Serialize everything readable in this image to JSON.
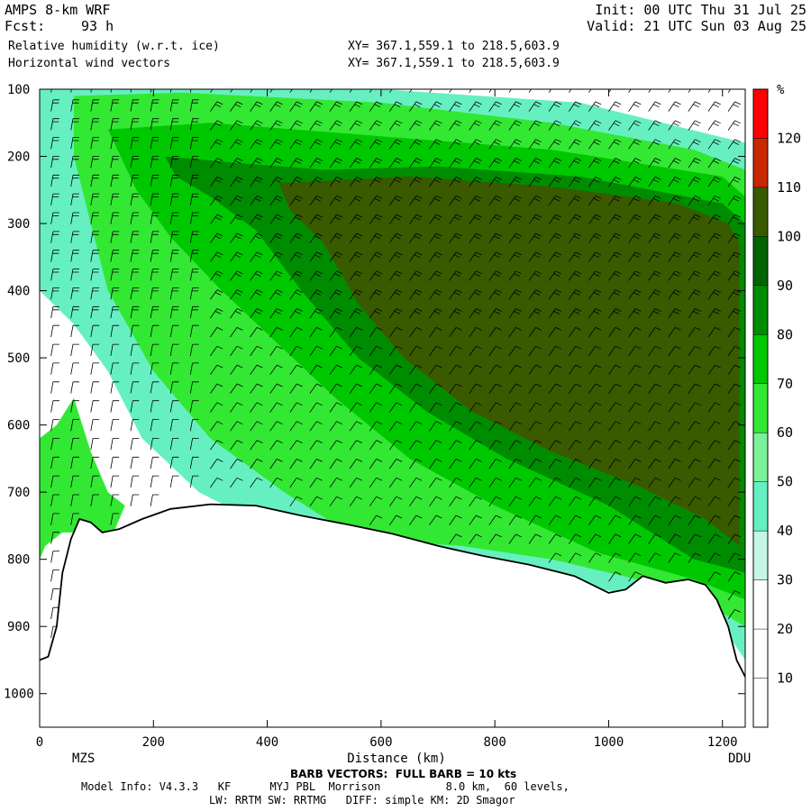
{
  "header": {
    "model": "AMPS 8-km WRF",
    "fcst_label": "Fcst:",
    "fcst_value": "93 h",
    "field1": "Relative humidity (w.r.t. ice)",
    "field2": "Horizontal wind vectors",
    "xy1": "XY= 367.1,559.1 to 218.5,603.9",
    "xy2": "XY= 367.1,559.1 to 218.5,603.9",
    "init": "Init: 00 UTC Thu 31 Jul 25",
    "valid": "Valid: 21 UTC Sun 03 Aug 25"
  },
  "footer": {
    "barb_note": "BARB VECTORS:  FULL BARB = 10 kts",
    "model_info": "Model Info: V4.3.3   KF      MYJ PBL  Morrison          8.0 km,  60 levels,",
    "physics": "LW: RRTM SW: RRTMG   DIFF: simple KM: 2D Smagor"
  },
  "chart_data": {
    "type": "heatmap",
    "title": "Relative humidity (w.r.t. ice)",
    "xlabel": "Distance (km)",
    "ylabel": "",
    "xlim": [
      0,
      1240
    ],
    "ylim": [
      1050,
      100
    ],
    "x_ticks": [
      0,
      200,
      400,
      600,
      800,
      1000,
      1200
    ],
    "y_ticks": [
      100,
      200,
      300,
      400,
      500,
      600,
      700,
      800,
      900,
      1000
    ],
    "endpoints": {
      "left": "MZS",
      "right": "DDU"
    },
    "colorbar": {
      "unit": "%",
      "levels": [
        10,
        20,
        30,
        40,
        50,
        60,
        70,
        80,
        90,
        100,
        110,
        120
      ],
      "colors": [
        "#ffffff",
        "#ffffff",
        "#ffffff",
        "#c6f7e6",
        "#66f0c2",
        "#7df09a",
        "#33e833",
        "#00c800",
        "#008c00",
        "#006400",
        "#3a5a00",
        "#c82800",
        "#ff0000"
      ]
    },
    "terrain_pressure": [
      [
        0,
        950
      ],
      [
        15,
        945
      ],
      [
        30,
        900
      ],
      [
        40,
        820
      ],
      [
        55,
        770
      ],
      [
        70,
        740
      ],
      [
        90,
        745
      ],
      [
        110,
        760
      ],
      [
        140,
        755
      ],
      [
        180,
        740
      ],
      [
        230,
        725
      ],
      [
        300,
        718
      ],
      [
        380,
        720
      ],
      [
        460,
        735
      ],
      [
        540,
        748
      ],
      [
        620,
        762
      ],
      [
        700,
        780
      ],
      [
        780,
        795
      ],
      [
        860,
        808
      ],
      [
        940,
        825
      ],
      [
        1000,
        850
      ],
      [
        1030,
        845
      ],
      [
        1060,
        825
      ],
      [
        1100,
        835
      ],
      [
        1140,
        830
      ],
      [
        1170,
        838
      ],
      [
        1190,
        860
      ],
      [
        1210,
        900
      ],
      [
        1225,
        950
      ],
      [
        1240,
        975
      ]
    ],
    "rh_regions": [
      {
        "level": ">=100",
        "polygon": [
          [
            420,
            240
          ],
          [
            650,
            230
          ],
          [
            900,
            245
          ],
          [
            1120,
            270
          ],
          [
            1210,
            300
          ],
          [
            1230,
            330
          ],
          [
            1230,
            780
          ],
          [
            1170,
            740
          ],
          [
            1050,
            690
          ],
          [
            900,
            640
          ],
          [
            760,
            580
          ],
          [
            640,
            500
          ],
          [
            560,
            420
          ],
          [
            500,
            330
          ],
          [
            440,
            280
          ]
        ]
      },
      {
        "level": "90-100",
        "polygon": [
          [
            220,
            200
          ],
          [
            350,
            210
          ],
          [
            500,
            220
          ],
          [
            700,
            215
          ],
          [
            950,
            230
          ],
          [
            1200,
            270
          ],
          [
            1240,
            300
          ],
          [
            1240,
            820
          ],
          [
            1150,
            800
          ],
          [
            1000,
            720
          ],
          [
            820,
            650
          ],
          [
            680,
            580
          ],
          [
            560,
            500
          ],
          [
            460,
            400
          ],
          [
            380,
            310
          ],
          [
            300,
            260
          ],
          [
            240,
            230
          ]
        ]
      },
      {
        "level": "80-90",
        "polygon": [
          [
            120,
            160
          ],
          [
            300,
            150
          ],
          [
            600,
            170
          ],
          [
            900,
            190
          ],
          [
            1200,
            230
          ],
          [
            1240,
            260
          ],
          [
            1240,
            860
          ],
          [
            1150,
            830
          ],
          [
            980,
            790
          ],
          [
            800,
            720
          ],
          [
            650,
            650
          ],
          [
            520,
            560
          ],
          [
            420,
            480
          ],
          [
            320,
            400
          ],
          [
            230,
            320
          ],
          [
            170,
            250
          ]
        ]
      },
      {
        "level": "60-80",
        "polygon": [
          [
            60,
            110
          ],
          [
            250,
            105
          ],
          [
            600,
            120
          ],
          [
            900,
            150
          ],
          [
            1150,
            190
          ],
          [
            1240,
            220
          ],
          [
            1240,
            900
          ],
          [
            1180,
            870
          ],
          [
            1050,
            830
          ],
          [
            900,
            800
          ],
          [
            740,
            780
          ],
          [
            560,
            770
          ],
          [
            430,
            700
          ],
          [
            300,
            620
          ],
          [
            200,
            520
          ],
          [
            120,
            400
          ],
          [
            90,
            300
          ],
          [
            60,
            200
          ]
        ]
      },
      {
        "level": "40-60",
        "polygon": [
          [
            0,
            100
          ],
          [
            600,
            100
          ],
          [
            950,
            120
          ],
          [
            1240,
            180
          ],
          [
            1240,
            950
          ],
          [
            1200,
            900
          ],
          [
            1100,
            860
          ],
          [
            950,
            840
          ],
          [
            760,
            830
          ],
          [
            560,
            800
          ],
          [
            420,
            760
          ],
          [
            280,
            700
          ],
          [
            180,
            620
          ],
          [
            120,
            520
          ],
          [
            60,
            450
          ],
          [
            0,
            400
          ]
        ]
      },
      {
        "level": "left-moist",
        "polygon": [
          [
            0,
            620
          ],
          [
            30,
            600
          ],
          [
            60,
            560
          ],
          [
            90,
            640
          ],
          [
            120,
            700
          ],
          [
            150,
            720
          ],
          [
            130,
            760
          ],
          [
            70,
            760
          ],
          [
            40,
            760
          ],
          [
            10,
            780
          ],
          [
            0,
            800
          ]
        ]
      }
    ]
  }
}
